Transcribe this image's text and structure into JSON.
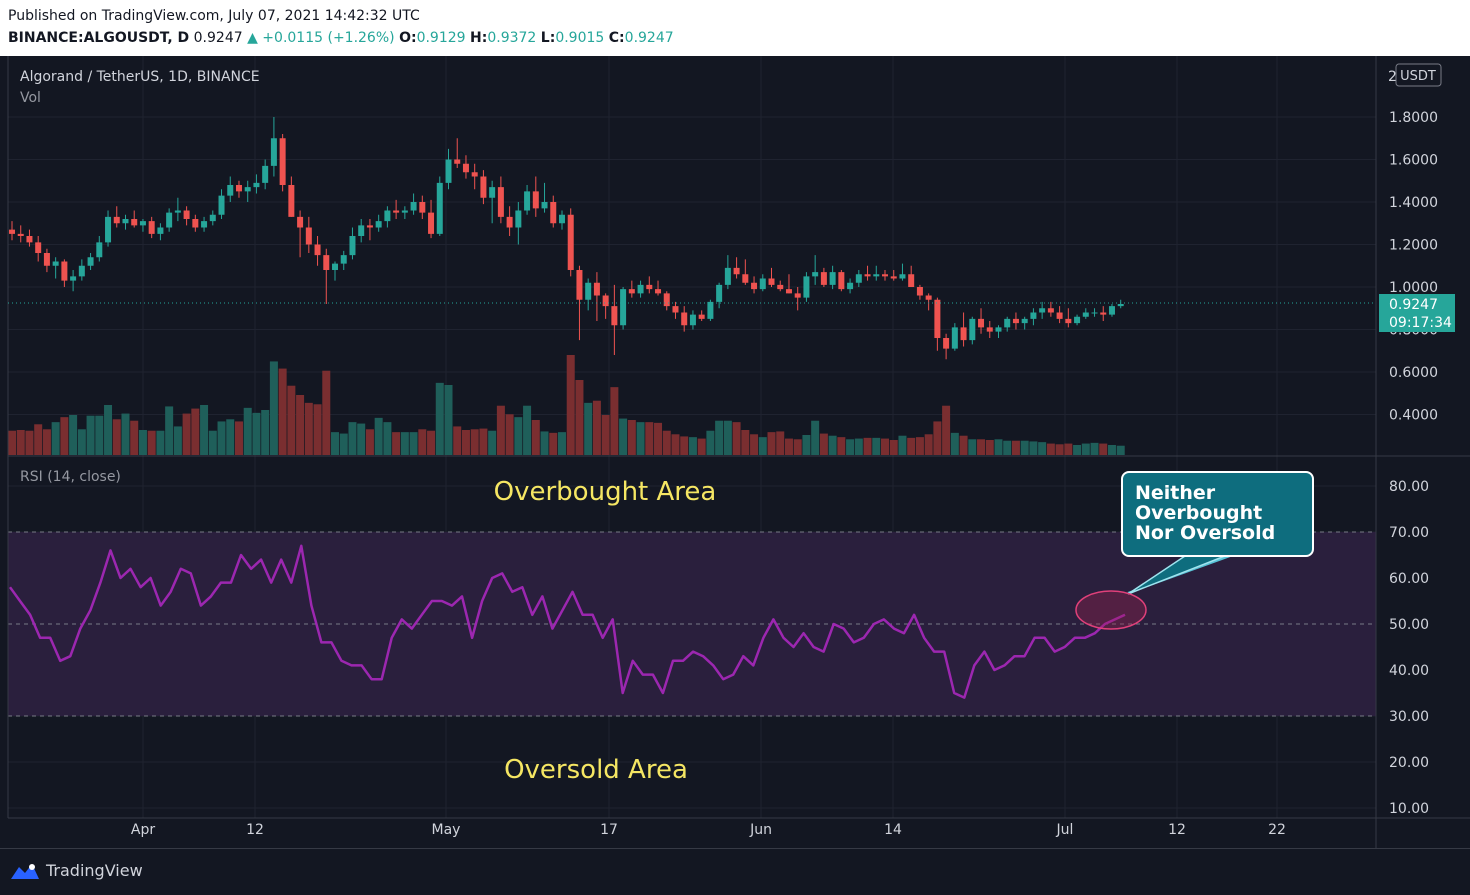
{
  "header": {
    "published": "Published on TradingView.com, July 07, 2021 14:42:32 UTC",
    "symbol": "BINANCE:ALGOUSDT, D",
    "last": "0.9247",
    "change": "▲ +0.0115 (+1.26%)",
    "o_label": "O:",
    "o": "0.9129",
    "h_label": "H:",
    "h": "0.9372",
    "l_label": "L:",
    "l": "0.9015",
    "c_label": "C:",
    "c": "0.9247"
  },
  "footer": {
    "brand": "TradingView"
  },
  "colors": {
    "up": "#26a69a",
    "down": "#ef5350",
    "rsi": "#9c27b0",
    "band": "#2a1f3d",
    "annotation": "#f5e663"
  },
  "chart_data": [
    {
      "type": "candlestick",
      "title": "Algorand / TetherUS, 1D, BINANCE",
      "subtitle": "Vol",
      "currency": "USDT",
      "top_tick": "2",
      "ylim": [
        0.25,
        2.05
      ],
      "yticks": [
        "1.8000",
        "1.6000",
        "1.4000",
        "1.2000",
        "1.0000",
        "0.8000",
        "0.6000",
        "0.4000"
      ],
      "xticks": [
        "Apr",
        "12",
        "May",
        "17",
        "Jun",
        "14",
        "Jul",
        "12",
        "22"
      ],
      "last_price": "0.9247",
      "countdown": "09:17:34",
      "candles_ohlc": [
        [
          1.27,
          1.31,
          1.22,
          1.25
        ],
        [
          1.25,
          1.29,
          1.21,
          1.24
        ],
        [
          1.24,
          1.27,
          1.19,
          1.21
        ],
        [
          1.21,
          1.24,
          1.12,
          1.16
        ],
        [
          1.16,
          1.18,
          1.07,
          1.1
        ],
        [
          1.1,
          1.14,
          1.04,
          1.12
        ],
        [
          1.12,
          1.13,
          1.0,
          1.03
        ],
        [
          1.03,
          1.08,
          0.98,
          1.05
        ],
        [
          1.05,
          1.13,
          1.03,
          1.1
        ],
        [
          1.1,
          1.16,
          1.08,
          1.14
        ],
        [
          1.14,
          1.24,
          1.12,
          1.21
        ],
        [
          1.21,
          1.36,
          1.19,
          1.33
        ],
        [
          1.33,
          1.38,
          1.28,
          1.3
        ],
        [
          1.3,
          1.34,
          1.27,
          1.32
        ],
        [
          1.32,
          1.36,
          1.28,
          1.29
        ],
        [
          1.29,
          1.32,
          1.26,
          1.31
        ],
        [
          1.31,
          1.33,
          1.23,
          1.25
        ],
        [
          1.25,
          1.3,
          1.22,
          1.28
        ],
        [
          1.28,
          1.37,
          1.26,
          1.35
        ],
        [
          1.35,
          1.42,
          1.31,
          1.36
        ],
        [
          1.36,
          1.38,
          1.29,
          1.32
        ],
        [
          1.32,
          1.34,
          1.26,
          1.28
        ],
        [
          1.28,
          1.33,
          1.26,
          1.31
        ],
        [
          1.31,
          1.36,
          1.29,
          1.34
        ],
        [
          1.34,
          1.46,
          1.32,
          1.43
        ],
        [
          1.43,
          1.52,
          1.4,
          1.48
        ],
        [
          1.48,
          1.5,
          1.42,
          1.45
        ],
        [
          1.45,
          1.5,
          1.4,
          1.47
        ],
        [
          1.47,
          1.53,
          1.44,
          1.49
        ],
        [
          1.49,
          1.6,
          1.46,
          1.57
        ],
        [
          1.57,
          1.8,
          1.52,
          1.7
        ],
        [
          1.7,
          1.72,
          1.45,
          1.48
        ],
        [
          1.48,
          1.52,
          1.33,
          1.33
        ],
        [
          1.33,
          1.36,
          1.14,
          1.28
        ],
        [
          1.28,
          1.33,
          1.16,
          1.2
        ],
        [
          1.2,
          1.24,
          1.1,
          1.15
        ],
        [
          1.15,
          1.18,
          0.92,
          1.08
        ],
        [
          1.08,
          1.12,
          1.03,
          1.11
        ],
        [
          1.11,
          1.17,
          1.08,
          1.15
        ],
        [
          1.15,
          1.28,
          1.13,
          1.24
        ],
        [
          1.24,
          1.32,
          1.21,
          1.29
        ],
        [
          1.29,
          1.32,
          1.22,
          1.28
        ],
        [
          1.28,
          1.34,
          1.26,
          1.31
        ],
        [
          1.31,
          1.38,
          1.28,
          1.36
        ],
        [
          1.36,
          1.41,
          1.32,
          1.35
        ],
        [
          1.35,
          1.38,
          1.32,
          1.36
        ],
        [
          1.36,
          1.44,
          1.34,
          1.4
        ],
        [
          1.4,
          1.43,
          1.32,
          1.35
        ],
        [
          1.35,
          1.41,
          1.23,
          1.25
        ],
        [
          1.25,
          1.52,
          1.24,
          1.49
        ],
        [
          1.49,
          1.65,
          1.46,
          1.6
        ],
        [
          1.6,
          1.7,
          1.56,
          1.58
        ],
        [
          1.58,
          1.62,
          1.51,
          1.54
        ],
        [
          1.54,
          1.58,
          1.46,
          1.52
        ],
        [
          1.52,
          1.55,
          1.39,
          1.42
        ],
        [
          1.42,
          1.5,
          1.3,
          1.47
        ],
        [
          1.47,
          1.52,
          1.3,
          1.33
        ],
        [
          1.33,
          1.38,
          1.24,
          1.28
        ],
        [
          1.28,
          1.4,
          1.2,
          1.36
        ],
        [
          1.36,
          1.48,
          1.34,
          1.45
        ],
        [
          1.45,
          1.52,
          1.33,
          1.37
        ],
        [
          1.37,
          1.49,
          1.35,
          1.4
        ],
        [
          1.4,
          1.43,
          1.28,
          1.3
        ],
        [
          1.3,
          1.36,
          1.27,
          1.34
        ],
        [
          1.34,
          1.37,
          1.05,
          1.08
        ],
        [
          1.08,
          1.1,
          0.75,
          0.94
        ],
        [
          0.94,
          1.04,
          0.89,
          1.02
        ],
        [
          1.02,
          1.07,
          0.84,
          0.96
        ],
        [
          0.96,
          0.97,
          0.85,
          0.91
        ],
        [
          0.91,
          1.01,
          0.68,
          0.82
        ],
        [
          0.82,
          1.0,
          0.8,
          0.99
        ],
        [
          0.99,
          1.03,
          0.95,
          0.97
        ],
        [
          0.97,
          1.03,
          0.95,
          1.01
        ],
        [
          1.01,
          1.05,
          0.97,
          0.99
        ],
        [
          0.99,
          1.03,
          0.96,
          0.97
        ],
        [
          0.97,
          0.98,
          0.89,
          0.91
        ],
        [
          0.91,
          0.93,
          0.85,
          0.88
        ],
        [
          0.88,
          0.91,
          0.79,
          0.82
        ],
        [
          0.82,
          0.89,
          0.8,
          0.87
        ],
        [
          0.87,
          0.89,
          0.84,
          0.85
        ],
        [
          0.85,
          0.94,
          0.84,
          0.93
        ],
        [
          0.93,
          1.02,
          0.9,
          1.01
        ],
        [
          1.01,
          1.15,
          0.99,
          1.09
        ],
        [
          1.09,
          1.14,
          1.04,
          1.06
        ],
        [
          1.06,
          1.13,
          1.01,
          1.02
        ],
        [
          1.02,
          1.05,
          0.97,
          0.99
        ],
        [
          0.99,
          1.06,
          0.98,
          1.04
        ],
        [
          1.04,
          1.09,
          1.0,
          1.01
        ],
        [
          1.01,
          1.03,
          0.98,
          0.99
        ],
        [
          0.99,
          1.06,
          0.97,
          0.97
        ],
        [
          0.97,
          1.0,
          0.89,
          0.95
        ],
        [
          0.95,
          1.07,
          0.93,
          1.05
        ],
        [
          1.05,
          1.15,
          1.01,
          1.07
        ],
        [
          1.07,
          1.09,
          1.0,
          1.01
        ],
        [
          1.01,
          1.1,
          0.99,
          1.07
        ],
        [
          1.07,
          1.08,
          0.98,
          0.99
        ],
        [
          0.99,
          1.04,
          0.97,
          1.02
        ],
        [
          1.02,
          1.08,
          1.0,
          1.06
        ],
        [
          1.06,
          1.1,
          1.03,
          1.05
        ],
        [
          1.05,
          1.1,
          1.03,
          1.06
        ],
        [
          1.06,
          1.08,
          1.03,
          1.05
        ],
        [
          1.05,
          1.08,
          1.03,
          1.04
        ],
        [
          1.04,
          1.11,
          1.03,
          1.06
        ],
        [
          1.06,
          1.1,
          1.0,
          1.0
        ],
        [
          1.0,
          1.01,
          0.94,
          0.96
        ],
        [
          0.96,
          0.97,
          0.89,
          0.94
        ],
        [
          0.94,
          0.95,
          0.7,
          0.76
        ],
        [
          0.76,
          0.78,
          0.66,
          0.71
        ],
        [
          0.71,
          0.83,
          0.7,
          0.81
        ],
        [
          0.81,
          0.88,
          0.72,
          0.75
        ],
        [
          0.75,
          0.86,
          0.73,
          0.85
        ],
        [
          0.85,
          0.9,
          0.78,
          0.81
        ],
        [
          0.81,
          0.84,
          0.76,
          0.79
        ],
        [
          0.79,
          0.82,
          0.76,
          0.81
        ],
        [
          0.81,
          0.86,
          0.79,
          0.85
        ],
        [
          0.85,
          0.88,
          0.8,
          0.83
        ],
        [
          0.83,
          0.86,
          0.8,
          0.85
        ],
        [
          0.85,
          0.9,
          0.82,
          0.88
        ],
        [
          0.88,
          0.93,
          0.85,
          0.9
        ],
        [
          0.9,
          0.93,
          0.86,
          0.88
        ],
        [
          0.88,
          0.91,
          0.83,
          0.85
        ],
        [
          0.85,
          0.9,
          0.81,
          0.83
        ],
        [
          0.83,
          0.87,
          0.82,
          0.86
        ],
        [
          0.86,
          0.9,
          0.85,
          0.88
        ],
        [
          0.88,
          0.9,
          0.86,
          0.88
        ],
        [
          0.88,
          0.91,
          0.84,
          0.87
        ],
        [
          0.87,
          0.92,
          0.86,
          0.91
        ],
        [
          0.91,
          0.94,
          0.9,
          0.92
        ]
      ],
      "volume_relative": [
        0.34,
        0.35,
        0.34,
        0.43,
        0.36,
        0.46,
        0.53,
        0.56,
        0.36,
        0.55,
        0.55,
        0.7,
        0.5,
        0.58,
        0.48,
        0.35,
        0.34,
        0.34,
        0.68,
        0.4,
        0.58,
        0.65,
        0.7,
        0.34,
        0.47,
        0.5,
        0.47,
        0.66,
        0.59,
        0.63,
        1.31,
        1.21,
        0.97,
        0.84,
        0.73,
        0.71,
        1.18,
        0.32,
        0.3,
        0.46,
        0.44,
        0.36,
        0.52,
        0.46,
        0.32,
        0.32,
        0.32,
        0.36,
        0.34,
        1.01,
        0.98,
        0.4,
        0.35,
        0.36,
        0.37,
        0.34,
        0.69,
        0.57,
        0.53,
        0.69,
        0.49,
        0.33,
        0.31,
        0.32,
        1.4,
        1.05,
        0.73,
        0.76,
        0.56,
        0.95,
        0.51,
        0.49,
        0.46,
        0.46,
        0.45,
        0.34,
        0.29,
        0.26,
        0.25,
        0.23,
        0.34,
        0.48,
        0.48,
        0.46,
        0.35,
        0.29,
        0.25,
        0.32,
        0.33,
        0.23,
        0.22,
        0.28,
        0.48,
        0.3,
        0.27,
        0.25,
        0.22,
        0.23,
        0.24,
        0.24,
        0.23,
        0.21,
        0.27,
        0.24,
        0.25,
        0.29,
        0.47,
        0.69,
        0.31,
        0.27,
        0.22,
        0.22,
        0.21,
        0.22,
        0.2,
        0.2,
        0.2,
        0.19,
        0.18,
        0.16,
        0.15,
        0.16,
        0.14,
        0.16,
        0.17,
        0.16,
        0.14,
        0.13
      ]
    },
    {
      "type": "line",
      "title": "RSI (14, close)",
      "ylim": [
        10,
        85
      ],
      "yticks": [
        "80.00",
        "70.00",
        "60.00",
        "50.00",
        "40.00",
        "30.00",
        "20.00",
        "10.00"
      ],
      "band": [
        30,
        70
      ],
      "midline": 50,
      "annotations": [
        "Overbought Area",
        "Oversold Area"
      ],
      "callout": [
        "Neither",
        "Overbought",
        "Nor Oversold"
      ],
      "series": [
        {
          "values": [
            58,
            55,
            52,
            47,
            47,
            42,
            43,
            49,
            53,
            59,
            66,
            60,
            62,
            58,
            60,
            54,
            57,
            62,
            61,
            54,
            56,
            59,
            59,
            65,
            62,
            64,
            59,
            64,
            59,
            67,
            54,
            46,
            46,
            42,
            41,
            41,
            38,
            38,
            47,
            51,
            49,
            52,
            55,
            55,
            54,
            56,
            47,
            55,
            60,
            61,
            57,
            58,
            52,
            56,
            49,
            53,
            57,
            52,
            52,
            47,
            51,
            35,
            42,
            39,
            39,
            35,
            42,
            42,
            44,
            43,
            41,
            38,
            39,
            43,
            41,
            47,
            51,
            47,
            45,
            48,
            45,
            44,
            50,
            49,
            46,
            47,
            50,
            51,
            49,
            48,
            52,
            47,
            44,
            44,
            35,
            34,
            41,
            44,
            40,
            41,
            43,
            43,
            47,
            47,
            44,
            45,
            47,
            47,
            48,
            50,
            51,
            52
          ]
        }
      ]
    }
  ]
}
